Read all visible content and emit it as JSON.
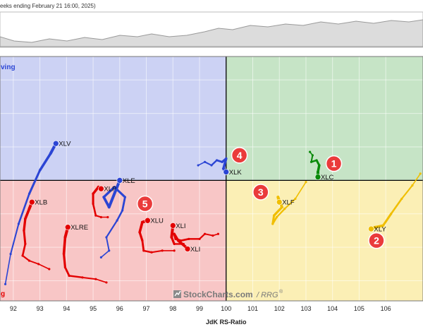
{
  "header": {
    "caption": "eeks ending February 21 16:00, 2025)"
  },
  "watermark": {
    "brand": "StockCharts.com",
    "suffix": "/ RRG",
    "reg": "®"
  },
  "colors": {
    "leading": "#c6e4c6",
    "weakening": "#fbefb5",
    "lagging": "#f8c6c6",
    "improving": "#ccd2f4",
    "red_series": "#e30000",
    "blue_series": "#2b45d4",
    "green_series": "#0a8a0a",
    "yellow_series": "#f0be00",
    "marker": "#ea3b3b"
  },
  "chart_data": {
    "type": "scatter",
    "title": "",
    "xlabel": "JdK RS-Ratio",
    "ylabel": "",
    "xlim": [
      91.5,
      107.4
    ],
    "ylim": [
      96.4,
      103.7
    ],
    "x_ticks": [
      92,
      93,
      94,
      95,
      96,
      97,
      98,
      99,
      100,
      101,
      102,
      103,
      104,
      105,
      106
    ],
    "center": [
      100,
      100
    ],
    "quadrant_labels": {
      "top_left": "Improving",
      "bottom_left": "Lagging"
    },
    "visible_quadrant_label_text": {
      "top_left": "ving",
      "bottom_left": "g"
    },
    "grid": true,
    "series": [
      {
        "name": "XLV",
        "color": "blue",
        "label_pos": "right",
        "x": [
          91.7,
          91.9,
          92.2,
          92.6,
          93.0,
          93.4,
          93.6
        ],
        "y": [
          96.9,
          97.8,
          98.7,
          99.6,
          100.3,
          100.8,
          101.1
        ]
      },
      {
        "name": "XLE",
        "color": "blue",
        "label_pos": "right",
        "x": [
          95.3,
          95.6,
          95.5,
          95.9,
          96.1,
          96.2,
          95.8,
          95.4,
          95.6,
          96.0
        ],
        "y": [
          97.7,
          97.9,
          98.3,
          98.8,
          99.1,
          99.5,
          99.8,
          99.5,
          99.2,
          100.0
        ]
      },
      {
        "name": "XLK",
        "color": "blue",
        "label_pos": "right",
        "x": [
          98.95,
          99.2,
          99.45,
          99.65,
          99.85,
          100.0,
          99.9,
          100.0
        ],
        "y": [
          100.45,
          100.55,
          100.45,
          100.6,
          100.55,
          100.65,
          100.35,
          100.25
        ]
      },
      {
        "name": "XLC",
        "color": "green",
        "label_pos": "right",
        "x": [
          103.15,
          103.25,
          103.2,
          103.4,
          103.5,
          103.45,
          103.45
        ],
        "y": [
          100.85,
          100.75,
          100.55,
          100.6,
          100.45,
          100.25,
          100.1
        ]
      },
      {
        "name": "XLF",
        "color": "yellow",
        "label_pos": "right",
        "x": [
          103.0,
          102.6,
          102.2,
          101.9,
          101.75,
          101.8,
          102.1,
          101.95,
          102.0
        ],
        "y": [
          99.95,
          99.45,
          99.15,
          98.9,
          98.7,
          98.95,
          99.2,
          99.5,
          99.35
        ]
      },
      {
        "name": "XLY",
        "color": "yellow",
        "label_pos": "right",
        "x": [
          107.3,
          107.0,
          106.6,
          106.2,
          105.9,
          105.6,
          105.45
        ],
        "y": [
          100.2,
          99.85,
          99.45,
          99.0,
          98.65,
          98.6,
          98.55
        ]
      },
      {
        "name": "XLB",
        "color": "red",
        "label_pos": "right",
        "x": [
          93.35,
          92.95,
          92.6,
          92.35,
          92.45,
          92.4,
          92.45,
          92.6,
          92.7
        ],
        "y": [
          97.35,
          97.5,
          97.6,
          97.75,
          98.1,
          98.5,
          98.85,
          99.15,
          99.35
        ]
      },
      {
        "name": "XLRE",
        "color": "red",
        "label_pos": "right",
        "x": [
          95.5,
          95.1,
          94.6,
          94.1,
          93.95,
          93.9,
          93.95,
          94.05
        ],
        "y": [
          96.95,
          97.05,
          97.1,
          97.15,
          97.4,
          97.8,
          98.3,
          98.6
        ]
      },
      {
        "name": "XLP",
        "color": "red",
        "label_pos": "right",
        "x": [
          95.55,
          95.3,
          95.1,
          95.0,
          95.0,
          95.2,
          95.3
        ],
        "y": [
          98.9,
          98.9,
          98.95,
          99.3,
          99.6,
          99.8,
          99.75
        ]
      },
      {
        "name": "XLU",
        "color": "red",
        "label_pos": "right",
        "x": [
          98.05,
          97.6,
          97.2,
          96.9,
          96.85,
          96.75,
          96.85,
          97.05
        ],
        "y": [
          97.9,
          97.9,
          97.85,
          97.9,
          98.2,
          98.45,
          98.75,
          98.8
        ]
      },
      {
        "name": "XLI",
        "color": "red",
        "label_pos": "right",
        "x": [
          99.7,
          99.5,
          99.2,
          99.0,
          98.6,
          98.3,
          98.1,
          98.05,
          98.2,
          98.5,
          98.55
        ],
        "y": [
          98.4,
          98.35,
          98.4,
          98.25,
          98.25,
          98.2,
          98.25,
          98.4,
          98.2,
          98.0,
          97.95
        ]
      },
      {
        "name": "XLI",
        "color": "red",
        "label_pos": "right",
        "x": [
          98.5,
          98.4,
          98.05,
          97.95,
          98.0
        ],
        "y": [
          97.95,
          98.1,
          98.1,
          98.3,
          98.65
        ]
      }
    ],
    "annotations": [
      {
        "label": "1",
        "x": 104.05,
        "y": 100.5
      },
      {
        "label": "2",
        "x": 105.65,
        "y": 98.2
      },
      {
        "label": "3",
        "x": 101.3,
        "y": 99.65
      },
      {
        "label": "4",
        "x": 100.5,
        "y": 100.75
      },
      {
        "label": "5",
        "x": 96.95,
        "y": 99.3
      }
    ]
  }
}
